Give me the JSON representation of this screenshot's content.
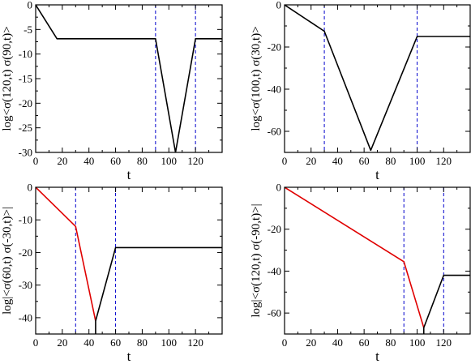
{
  "figure": {
    "colors": {
      "black": "#000000",
      "red": "#e00000",
      "blue": "#0000cc"
    }
  },
  "chart_data": [
    {
      "type": "line",
      "ylabel": "log<σ(120,t) σ(90,t)>",
      "xlabel": "t",
      "xlim": [
        0,
        140
      ],
      "ylim": [
        -30,
        0
      ],
      "xticks": [
        0,
        20,
        40,
        60,
        80,
        100,
        120
      ],
      "yticks": [
        0,
        -5,
        -10,
        -15,
        -20,
        -25,
        -30
      ],
      "vlines": [
        90,
        120
      ],
      "series": [
        {
          "color": "black",
          "points": [
            [
              0,
              0
            ],
            [
              16,
              -6.9
            ],
            [
              90,
              -6.9
            ],
            [
              105,
              -30
            ],
            [
              120,
              -6.9
            ],
            [
              140,
              -6.9
            ]
          ]
        }
      ]
    },
    {
      "type": "line",
      "ylabel": "log<σ(100,t) σ(30,t)>",
      "xlabel": "t",
      "xlim": [
        0,
        140
      ],
      "ylim": [
        -70,
        0
      ],
      "xticks": [
        0,
        20,
        40,
        60,
        80,
        100,
        120
      ],
      "yticks": [
        0,
        -20,
        -40,
        -60
      ],
      "vlines": [
        30,
        100
      ],
      "series": [
        {
          "color": "black",
          "points": [
            [
              0,
              0
            ],
            [
              30,
              -12.5
            ],
            [
              65,
              -69
            ],
            [
              100,
              -15
            ],
            [
              140,
              -15
            ]
          ]
        }
      ]
    },
    {
      "type": "line",
      "ylabel": "log|<σ(60,t) σ(-30,t)>|",
      "xlabel": "t",
      "xlim": [
        0,
        140
      ],
      "ylim": [
        -45,
        0
      ],
      "xticks": [
        0,
        20,
        40,
        60,
        80,
        100,
        120
      ],
      "yticks": [
        0,
        -10,
        -20,
        -30,
        -40
      ],
      "vlines": [
        30,
        60
      ],
      "series": [
        {
          "color": "red",
          "points": [
            [
              0,
              0
            ],
            [
              30,
              -12
            ],
            [
              45,
              -41
            ]
          ]
        },
        {
          "color": "black",
          "points": [
            [
              45,
              -45
            ],
            [
              45,
              -41
            ],
            [
              60,
              -18.5
            ],
            [
              140,
              -18.5
            ]
          ]
        }
      ]
    },
    {
      "type": "line",
      "ylabel": "log|<σ(120,t) σ(-90,t)>|",
      "xlabel": "t",
      "xlim": [
        0,
        140
      ],
      "ylim": [
        -70,
        0
      ],
      "xticks": [
        0,
        20,
        40,
        60,
        80,
        100,
        120
      ],
      "yticks": [
        0,
        -20,
        -40,
        -60
      ],
      "vlines": [
        90,
        120
      ],
      "series": [
        {
          "color": "red",
          "points": [
            [
              0,
              0
            ],
            [
              90,
              -35.5
            ],
            [
              105,
              -67
            ]
          ]
        },
        {
          "color": "black",
          "points": [
            [
              105,
              -70
            ],
            [
              105,
              -67
            ],
            [
              120,
              -42
            ],
            [
              140,
              -42
            ]
          ]
        }
      ]
    }
  ]
}
